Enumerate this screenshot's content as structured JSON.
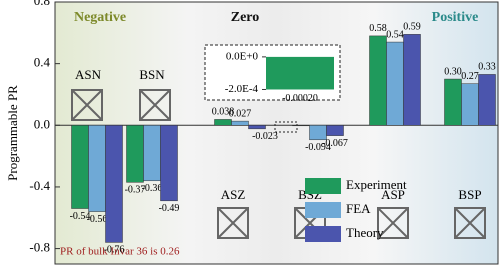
{
  "chart_data": {
    "type": "bar",
    "y_label": "Programmable PR",
    "categories": [
      "ASN",
      "BSN",
      "ASZ",
      "BSZ",
      "ASP",
      "BSP"
    ],
    "series": [
      {
        "name": "Experiment",
        "color": "#1f9a5c",
        "values": [
          -0.54,
          -0.37,
          0.038,
          -0.0002,
          0.58,
          0.3
        ],
        "value_labels": [
          "-0.54",
          "-0.37",
          "0.038",
          "-0.00020",
          "0.58",
          "0.30"
        ]
      },
      {
        "name": "FEA",
        "color": "#6fa9d6",
        "values": [
          -0.56,
          -0.36,
          0.027,
          -0.094,
          0.54,
          0.27
        ],
        "value_labels": [
          "-0.56",
          "-0.36",
          "0.027",
          "-0.094",
          "0.54",
          "0.27"
        ]
      },
      {
        "name": "Theory",
        "color": "#4b55ad",
        "values": [
          -0.76,
          -0.49,
          -0.023,
          -0.067,
          0.59,
          0.33
        ],
        "value_labels": [
          "-0.76",
          "-0.49",
          "-0.023",
          "-0.067",
          "0.59",
          "0.33"
        ]
      }
    ],
    "ylim": [
      -0.9,
      0.8
    ],
    "yticks": [
      0.8,
      0.4,
      {
        "value": 0,
        "label": "0.0"
      },
      -0.4,
      -0.8
    ],
    "regions": [
      "Negative",
      "Zero",
      "Positive"
    ],
    "annotation": "PR of bulk Invar 36 is 0.26",
    "inset": {
      "ylim": [
        3e-05,
        -0.00024
      ],
      "yticks": [
        {
          "value": 0,
          "label": "0.0E+0"
        },
        {
          "value": -0.0002,
          "label": "-2.0E-4"
        }
      ]
    }
  }
}
